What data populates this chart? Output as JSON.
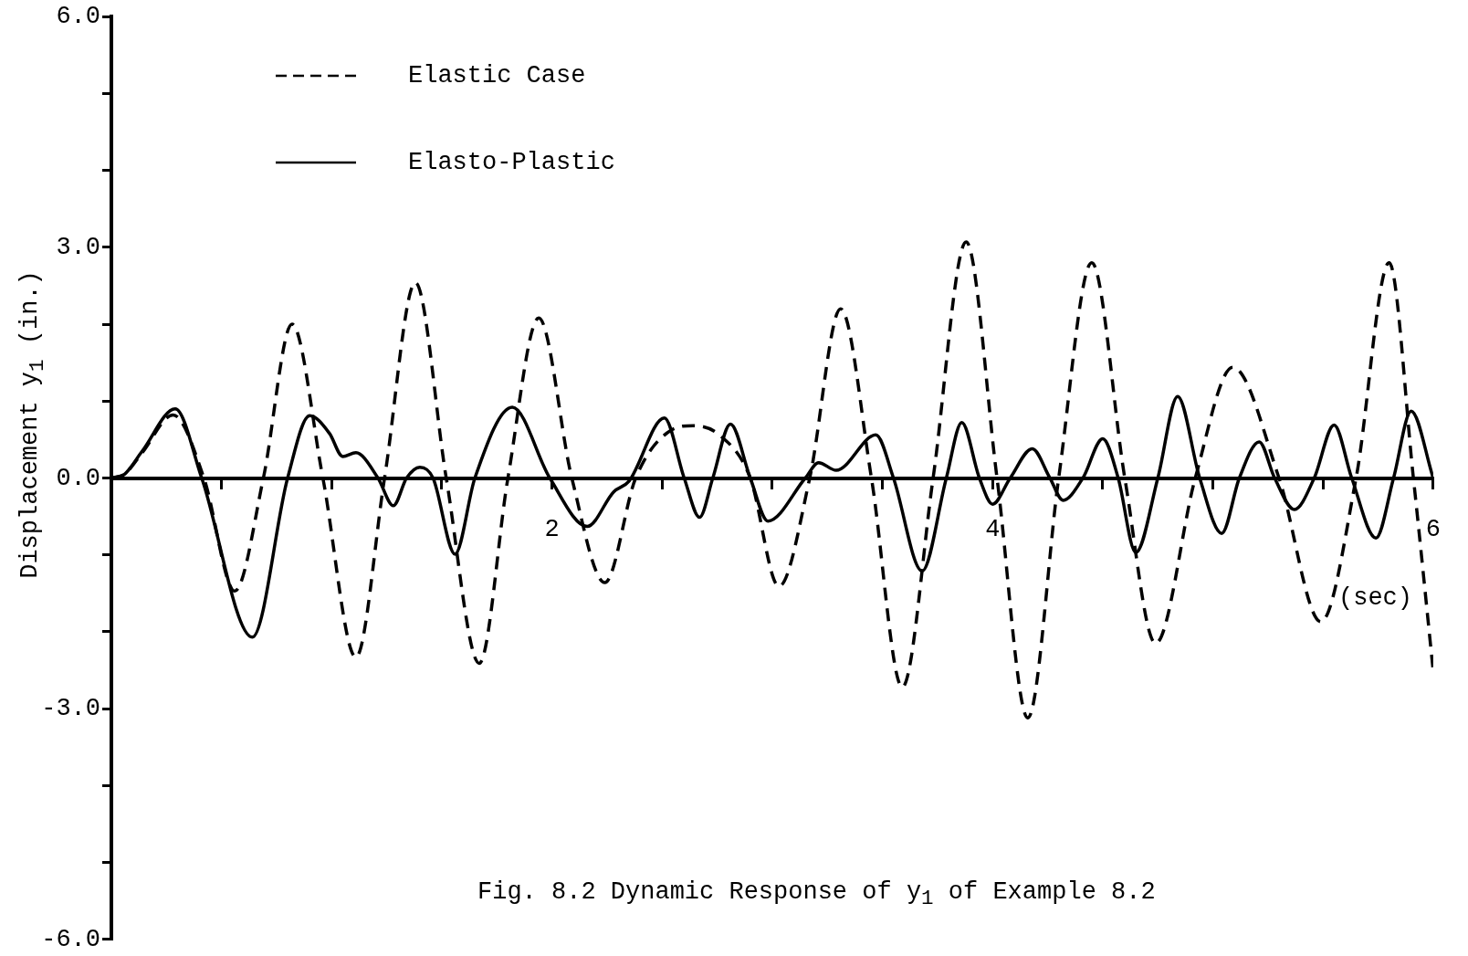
{
  "chart_data": {
    "type": "line",
    "title": "Fig. 8.2  Dynamic Response of y$_{1}$ of Example 8.2",
    "xlabel": "(sec)",
    "ylabel": "Displacement y$_{1}$  (in.)",
    "xlim": [
      0,
      6
    ],
    "ylim": [
      -6,
      6
    ],
    "xticks": [
      {
        "value": 0,
        "label": null
      },
      {
        "value": 0.5,
        "label": null
      },
      {
        "value": 1,
        "label": null
      },
      {
        "value": 1.5,
        "label": null
      },
      {
        "value": 2,
        "label": "2"
      },
      {
        "value": 2.5,
        "label": null
      },
      {
        "value": 3,
        "label": null
      },
      {
        "value": 3.5,
        "label": null
      },
      {
        "value": 4,
        "label": "4"
      },
      {
        "value": 4.5,
        "label": null
      },
      {
        "value": 5,
        "label": null
      },
      {
        "value": 5.5,
        "label": null
      },
      {
        "value": 6,
        "label": "6"
      }
    ],
    "yticks": [
      {
        "value": -6,
        "label": "-6.0"
      },
      {
        "value": -5,
        "label": null
      },
      {
        "value": -4,
        "label": null
      },
      {
        "value": -3,
        "label": "-3.0"
      },
      {
        "value": -2,
        "label": null
      },
      {
        "value": -1,
        "label": null
      },
      {
        "value": 0,
        "label": "0.0"
      },
      {
        "value": 1,
        "label": null
      },
      {
        "value": 2,
        "label": null
      },
      {
        "value": 3,
        "label": "3.0"
      },
      {
        "value": 4,
        "label": null
      },
      {
        "value": 5,
        "label": null
      },
      {
        "value": 6,
        "label": "6.0"
      }
    ],
    "grid": false,
    "legend": "top left",
    "marker": "none",
    "series": [
      {
        "name": "Elastic Case",
        "color": "#000000",
        "line_style": "dashed",
        "x": [
          0,
          0.06,
          0.14,
          0.28,
          0.42,
          0.56,
          0.69,
          0.82,
          0.96,
          1.11,
          1.24,
          1.38,
          1.52,
          1.67,
          1.8,
          1.94,
          2.09,
          2.24,
          2.38,
          2.54,
          2.64,
          2.76,
          2.9,
          3.03,
          3.17,
          3.31,
          3.45,
          3.59,
          3.73,
          3.88,
          4.02,
          4.16,
          4.3,
          4.45,
          4.6,
          4.74,
          4.92,
          5.09,
          5.3,
          5.49,
          5.65,
          5.8,
          5.91,
          6.0
        ],
        "values": [
          0,
          0.05,
          0.33,
          0.82,
          0,
          -1.47,
          0,
          2.0,
          0,
          -2.33,
          0,
          2.54,
          0,
          -2.41,
          0,
          2.08,
          0,
          -1.36,
          0,
          0.62,
          0.68,
          0.56,
          0,
          -1.41,
          0,
          2.2,
          0,
          -2.72,
          0,
          3.07,
          0,
          -3.12,
          0,
          2.8,
          0,
          -2.15,
          0,
          1.44,
          0,
          -1.87,
          0,
          2.8,
          0,
          -2.51
        ]
      },
      {
        "name": "Elasto-Plastic",
        "color": "#000000",
        "line_style": "solid",
        "x": [
          0,
          0.06,
          0.14,
          0.29,
          0.41,
          0.64,
          0.8,
          0.9,
          0.99,
          1.05,
          1.11,
          1.21,
          1.28,
          1.34,
          1.4,
          1.46,
          1.56,
          1.65,
          1.82,
          1.99,
          2.16,
          2.28,
          2.35,
          2.51,
          2.6,
          2.67,
          2.73,
          2.81,
          2.9,
          2.98,
          3.15,
          3.21,
          3.29,
          3.47,
          3.55,
          3.68,
          3.79,
          3.86,
          3.94,
          4.0,
          4.08,
          4.18,
          4.26,
          4.32,
          4.41,
          4.5,
          4.57,
          4.65,
          4.75,
          4.84,
          4.94,
          5.04,
          5.12,
          5.21,
          5.28,
          5.37,
          5.46,
          5.55,
          5.63,
          5.74,
          5.82,
          5.9,
          6.0
        ],
        "values": [
          0,
          0.05,
          0.35,
          0.9,
          0,
          -2.07,
          0,
          0.81,
          0.58,
          0.28,
          0.33,
          0,
          -0.36,
          0,
          0.14,
          0,
          -0.99,
          0,
          0.92,
          0,
          -0.63,
          -0.18,
          -0.04,
          0.78,
          0,
          -0.51,
          0,
          0.7,
          0,
          -0.56,
          0,
          0.2,
          0.1,
          0.56,
          0,
          -1.21,
          0,
          0.72,
          0,
          -0.34,
          0,
          0.38,
          0,
          -0.29,
          0,
          0.51,
          0,
          -0.97,
          0,
          1.06,
          0,
          -0.72,
          0,
          0.47,
          0,
          -0.41,
          0,
          0.69,
          0,
          -0.78,
          0,
          0.87,
          0
        ]
      }
    ]
  }
}
